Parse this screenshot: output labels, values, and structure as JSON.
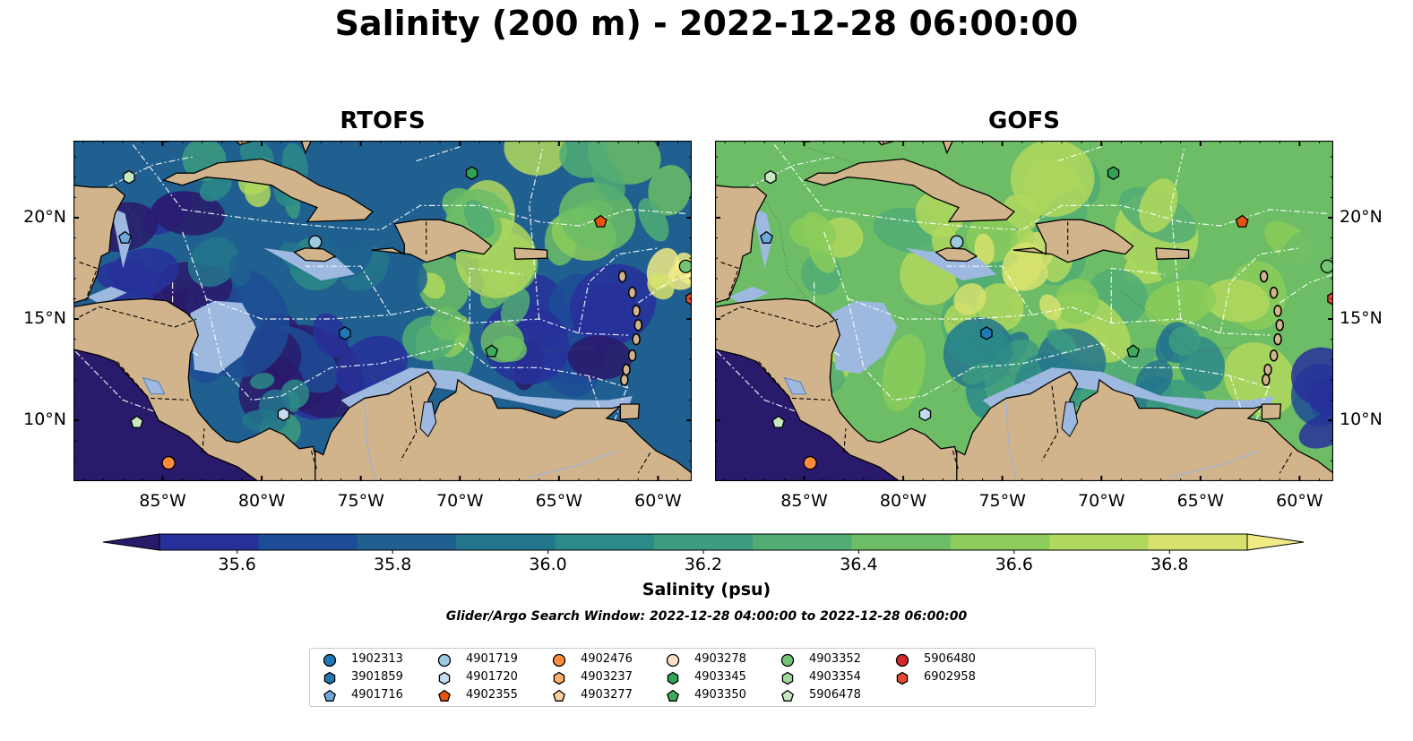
{
  "title": "Salinity (200 m) - 2022-12-28 06:00:00",
  "panels": [
    {
      "title": "RTOFS"
    },
    {
      "title": "GOFS"
    }
  ],
  "axes": {
    "x_ticks": [
      "85°W",
      "80°W",
      "75°W",
      "70°W",
      "65°W",
      "60°W"
    ],
    "y_ticks": [
      "20°N",
      "15°N",
      "10°N"
    ],
    "lon_range": [
      -89.5,
      -58.3
    ],
    "lat_range": [
      7.0,
      23.8
    ]
  },
  "colorbar": {
    "label": "Salinity (psu)",
    "ticks": [
      "35.6",
      "35.8",
      "36.0",
      "36.2",
      "36.4",
      "36.6",
      "36.8"
    ],
    "range": [
      35.6,
      36.9
    ],
    "colors": [
      "#2a1a6b",
      "#27309a",
      "#1d4c96",
      "#1f6090",
      "#24768c",
      "#2c8a88",
      "#3c9b80",
      "#51ad74",
      "#6cbd65",
      "#8ccc5a",
      "#b0d85d",
      "#d6e26d",
      "#f1eb85"
    ]
  },
  "search_window": "Glider/Argo Search Window: 2022-12-28 04:00:00 to 2022-12-28 06:00:00",
  "legend": [
    {
      "id": "1902313",
      "shape": "circle",
      "color": "#1f77b4"
    },
    {
      "id": "3901859",
      "shape": "hexagon",
      "color": "#1f77b4"
    },
    {
      "id": "4901716",
      "shape": "pentagon",
      "color": "#6fa8dc"
    },
    {
      "id": "4901719",
      "shape": "circle",
      "color": "#9ecae1"
    },
    {
      "id": "4901720",
      "shape": "hexagon",
      "color": "#c6dbef"
    },
    {
      "id": "4902355",
      "shape": "pentagon",
      "color": "#e6550d"
    },
    {
      "id": "4902476",
      "shape": "circle",
      "color": "#fd8d3c"
    },
    {
      "id": "4903237",
      "shape": "hexagon",
      "color": "#fdae6b"
    },
    {
      "id": "4903277",
      "shape": "pentagon",
      "color": "#fdd0a2"
    },
    {
      "id": "4903278",
      "shape": "circle",
      "color": "#fde0c5"
    },
    {
      "id": "4903345",
      "shape": "hexagon",
      "color": "#31a354"
    },
    {
      "id": "4903350",
      "shape": "pentagon",
      "color": "#41ab5d"
    },
    {
      "id": "4903352",
      "shape": "circle",
      "color": "#74c476"
    },
    {
      "id": "4903354",
      "shape": "hexagon",
      "color": "#a1d99b"
    },
    {
      "id": "5906478",
      "shape": "pentagon",
      "color": "#c7e9c0"
    },
    {
      "id": "5906480",
      "shape": "circle",
      "color": "#d62728"
    },
    {
      "id": "6902958",
      "shape": "hexagon",
      "color": "#e34a33"
    }
  ],
  "floats_on_map": [
    {
      "shape": "pentagon",
      "color": "#fdae6b",
      "lon": -84.9,
      "lat": 24.0
    },
    {
      "shape": "hexagon",
      "color": "#c7e9c0",
      "lon": -86.7,
      "lat": 22.0
    },
    {
      "shape": "pentagon",
      "color": "#6fa8dc",
      "lon": -86.9,
      "lat": 19.0
    },
    {
      "shape": "hexagon",
      "color": "#31a354",
      "lon": -69.4,
      "lat": 22.2
    },
    {
      "shape": "pentagon",
      "color": "#e6550d",
      "lon": -62.9,
      "lat": 19.8
    },
    {
      "shape": "circle",
      "color": "#9ecae1",
      "lon": -77.3,
      "lat": 18.8
    },
    {
      "shape": "circle",
      "color": "#74c476",
      "lon": -58.6,
      "lat": 17.6
    },
    {
      "shape": "hexagon",
      "color": "#e34a33",
      "lon": -58.3,
      "lat": 16.0
    },
    {
      "shape": "hexagon",
      "color": "#1f77b4",
      "lon": -75.8,
      "lat": 14.3
    },
    {
      "shape": "pentagon",
      "color": "#41ab5d",
      "lon": -68.4,
      "lat": 13.4
    },
    {
      "shape": "hexagon",
      "color": "#c6dbef",
      "lon": -78.9,
      "lat": 10.3
    },
    {
      "shape": "pentagon",
      "color": "#c7e9c0",
      "lon": -86.3,
      "lat": 9.9
    },
    {
      "shape": "circle",
      "color": "#fd8d3c",
      "lon": -84.7,
      "lat": 7.9
    }
  ]
}
